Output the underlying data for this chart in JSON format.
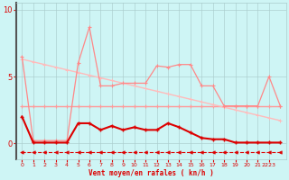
{
  "xlabel": "Vent moyen/en rafales ( kn/h )",
  "bg_color": "#cef5f5",
  "grid_color": "#aacccc",
  "xlim": [
    -0.5,
    23.5
  ],
  "ylim": [
    -1.2,
    10.5
  ],
  "yticks": [
    0,
    5,
    10
  ],
  "xtick_labels": [
    "0",
    "1",
    "2",
    "3",
    "4",
    "5",
    "6",
    "7",
    "8",
    "9",
    "10",
    "11",
    "12",
    "13",
    "14",
    "15",
    "16",
    "17",
    "18",
    "19",
    "20",
    "21",
    "2223"
  ],
  "xticks": [
    0,
    1,
    2,
    3,
    4,
    5,
    6,
    7,
    8,
    9,
    10,
    11,
    12,
    13,
    14,
    15,
    16,
    17,
    18,
    19,
    20,
    21,
    22
  ],
  "x": [
    0,
    1,
    2,
    3,
    4,
    5,
    6,
    7,
    8,
    9,
    10,
    11,
    12,
    13,
    14,
    15,
    16,
    17,
    18,
    19,
    20,
    21,
    22,
    23
  ],
  "line_dark_jagged_y": [
    2.0,
    0.05,
    0.05,
    0.05,
    0.05,
    1.5,
    1.5,
    1.0,
    1.3,
    1.0,
    1.2,
    1.0,
    1.0,
    1.5,
    1.2,
    0.8,
    0.4,
    0.3,
    0.3,
    0.05,
    0.05,
    0.05,
    0.05,
    0.05
  ],
  "line_salmon_jagged_y": [
    6.5,
    0.2,
    0.2,
    0.2,
    0.2,
    6.0,
    8.7,
    4.3,
    4.3,
    4.5,
    4.5,
    4.5,
    5.8,
    5.7,
    5.9,
    5.9,
    4.3,
    4.3,
    2.8,
    2.8,
    2.8,
    2.8,
    5.0,
    2.8
  ],
  "line_light_diag_y": [
    6.3,
    6.1,
    5.9,
    5.7,
    5.5,
    5.3,
    5.1,
    4.9,
    4.7,
    4.5,
    4.3,
    4.1,
    3.9,
    3.7,
    3.5,
    3.3,
    3.1,
    2.9,
    2.7,
    2.5,
    2.3,
    2.1,
    1.9,
    1.7
  ],
  "line_salmon_flat_y": [
    2.8,
    2.8,
    2.8,
    2.8,
    2.8,
    2.8,
    2.8,
    2.8,
    2.8,
    2.8,
    2.8,
    2.8,
    2.8,
    2.8,
    2.8,
    2.8,
    2.8,
    2.8,
    2.8,
    2.8,
    2.8,
    2.8,
    2.8,
    2.8
  ],
  "line_dashed_y": [
    -0.65,
    -0.65,
    -0.65,
    -0.65,
    -0.65,
    -0.65,
    -0.65,
    -0.65,
    -0.65,
    -0.65,
    -0.65,
    -0.65,
    -0.65,
    -0.65,
    -0.65,
    -0.65,
    -0.65,
    -0.65,
    -0.65,
    -0.65,
    -0.65,
    -0.65,
    -0.65,
    -0.65
  ],
  "color_dark_red": "#dd0000",
  "color_salmon": "#ff8888",
  "color_light_salmon": "#ffbbbb",
  "color_mid_salmon": "#ff9999"
}
